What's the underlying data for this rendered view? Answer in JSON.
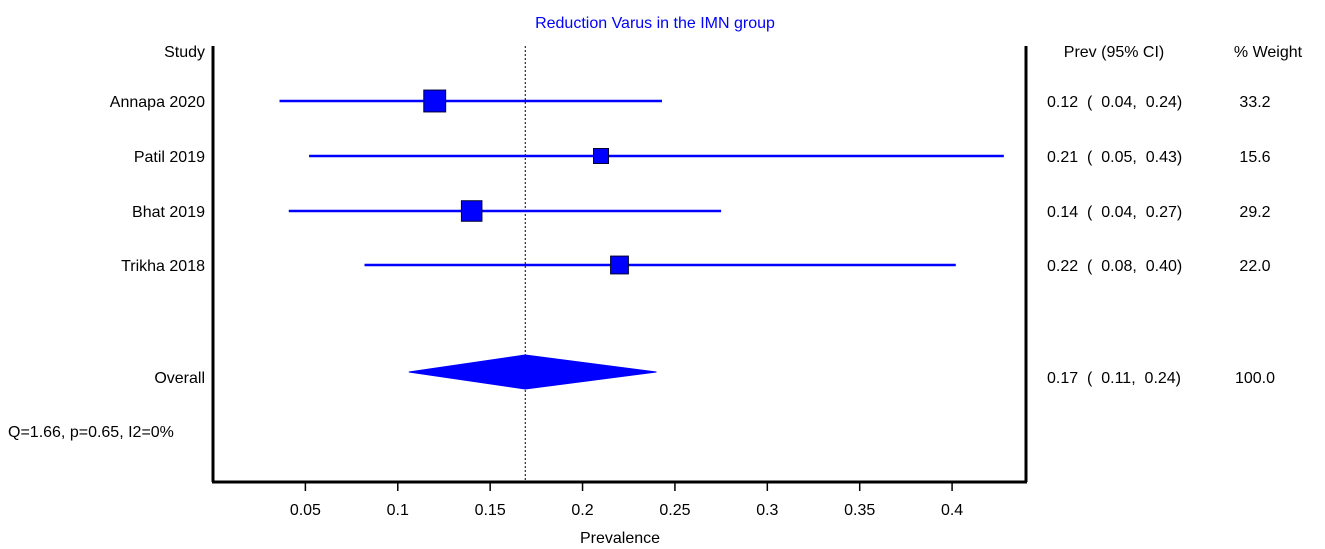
{
  "chart_data": {
    "type": "forest",
    "title": "Reduction Varus in the IMN group",
    "xlabel": "Prevalence",
    "xlim": [
      0.0,
      0.44
    ],
    "xticks": [
      "0.05",
      "0.1",
      "0.15",
      "0.2",
      "0.25",
      "0.3",
      "0.35",
      "0.4"
    ],
    "columns": {
      "study": "Study",
      "estimate": "Prev (95% CI)",
      "weight": "% Weight"
    },
    "studies": [
      {
        "name": "Annapa 2020",
        "prev": 0.12,
        "lower": 0.036,
        "upper": 0.243,
        "ci_text": "0.12  (  0.04,  0.24)",
        "weight": "33.2"
      },
      {
        "name": "Patil 2019",
        "prev": 0.21,
        "lower": 0.052,
        "upper": 0.428,
        "ci_text": "0.21  (  0.05,  0.43)",
        "weight": "15.6"
      },
      {
        "name": "Bhat 2019",
        "prev": 0.14,
        "lower": 0.041,
        "upper": 0.275,
        "ci_text": "0.14  (  0.04,  0.27)",
        "weight": "29.2"
      },
      {
        "name": "Trikha 2018",
        "prev": 0.22,
        "lower": 0.082,
        "upper": 0.402,
        "ci_text": "0.22  (  0.08,  0.40)",
        "weight": "22.0"
      }
    ],
    "overall": {
      "name": "Overall",
      "prev": 0.169,
      "lower": 0.106,
      "upper": 0.24,
      "ci_text": "0.17  (  0.11,  0.24)",
      "weight": "100.0"
    },
    "heterogeneity": "Q=1.66, p=0.65, I2=0%",
    "reference_line": 0.169,
    "colors": {
      "marker": "#0000ff",
      "title": "#0000ff",
      "axis": "#000000"
    }
  }
}
